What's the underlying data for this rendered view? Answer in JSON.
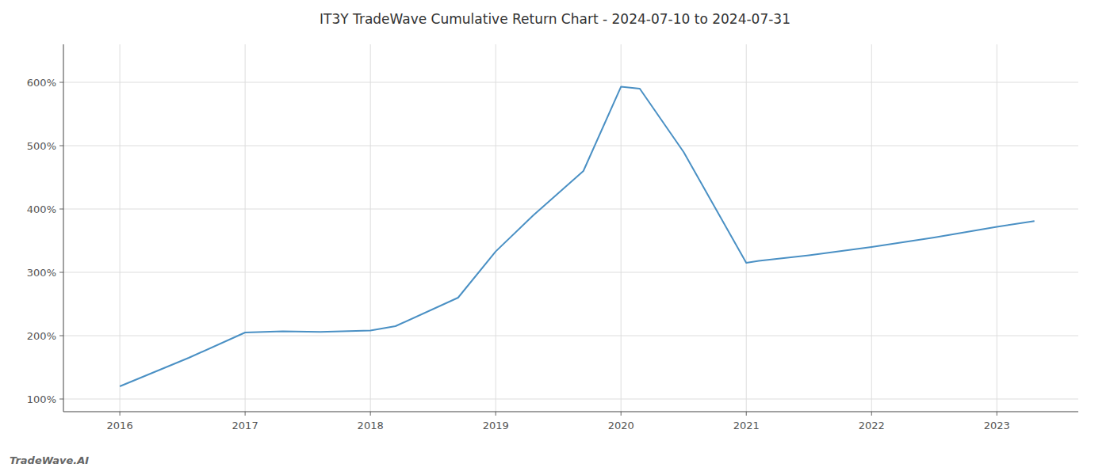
{
  "chart_data": {
    "type": "line",
    "title": "IT3Y TradeWave Cumulative Return Chart - 2024-07-10 to 2024-07-31",
    "annotations": [
      "TradeWave.AI"
    ],
    "x": [
      2016.0,
      2016.55,
      2017.0,
      2017.3,
      2017.6,
      2018.0,
      2018.2,
      2018.7,
      2019.0,
      2019.3,
      2019.7,
      2020.0,
      2020.15,
      2020.5,
      2021.0,
      2021.1,
      2021.5,
      2022.0,
      2022.5,
      2023.0,
      2023.3
    ],
    "values": [
      120,
      165,
      205,
      207,
      206,
      208,
      215,
      260,
      333,
      390,
      460,
      593,
      590,
      490,
      315,
      318,
      327,
      340,
      355,
      372,
      381
    ],
    "color": "#4a90c4",
    "xlim": [
      2015.55,
      2023.65
    ],
    "xticks": [
      2016,
      2017,
      2018,
      2019,
      2020,
      2021,
      2022,
      2023
    ],
    "ylim": [
      80,
      660
    ],
    "yticks": [
      {
        "value": 100,
        "label": "100%"
      },
      {
        "value": 200,
        "label": "200%"
      },
      {
        "value": 300,
        "label": "300%"
      },
      {
        "value": 400,
        "label": "400%"
      },
      {
        "value": 500,
        "label": "500%"
      },
      {
        "value": 600,
        "label": "600%"
      }
    ],
    "grid": true
  }
}
